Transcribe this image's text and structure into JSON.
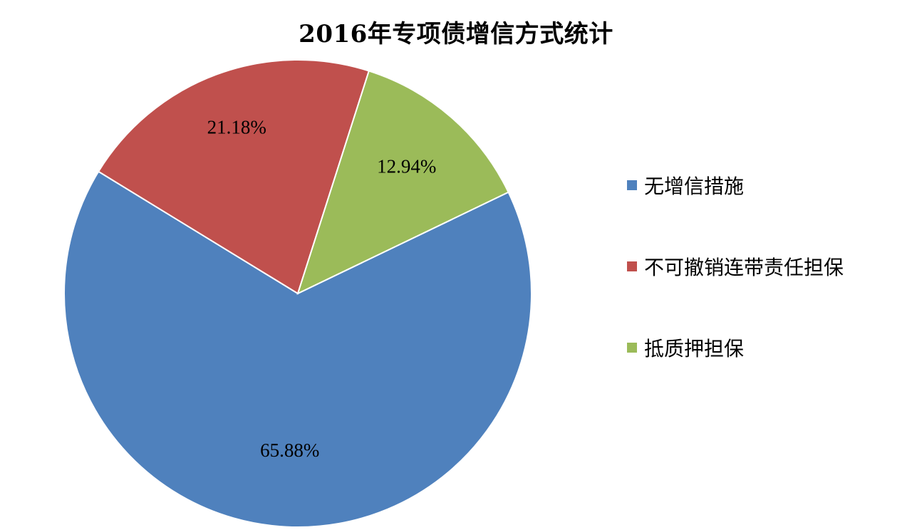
{
  "chart_data": {
    "type": "pie",
    "title": "2016年专项债增信方式统计",
    "legend_position": "right",
    "slices": [
      {
        "label": "无增信措施",
        "value": 65.88,
        "value_label": "65.88%",
        "color": "#4F81BD"
      },
      {
        "label": "不可撤销连带责任担保",
        "value": 21.18,
        "value_label": "21.18%",
        "color": "#C0504D"
      },
      {
        "label": "抵质押担保",
        "value": 12.94,
        "value_label": "12.94%",
        "color": "#9BBB59"
      }
    ]
  }
}
